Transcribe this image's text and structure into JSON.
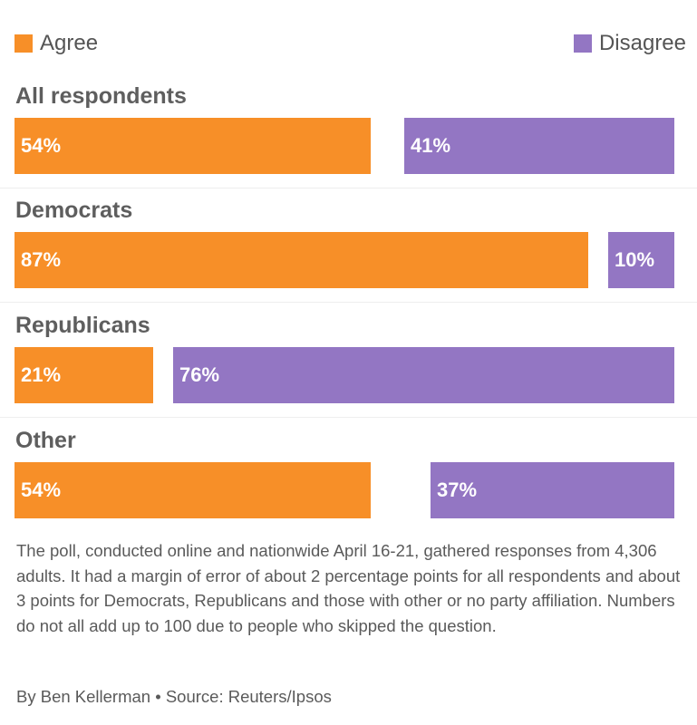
{
  "legend": {
    "agree": {
      "label": "Agree",
      "color": "#f78f28"
    },
    "disagree": {
      "label": "Disagree",
      "color": "#9376c3"
    }
  },
  "chart_data": {
    "type": "bar",
    "orientation": "horizontal",
    "layout": "diverging-from-ends",
    "categories": [
      "All respondents",
      "Democrats",
      "Republicans",
      "Other"
    ],
    "series": [
      {
        "name": "Agree",
        "values": [
          54,
          87,
          21,
          54
        ],
        "labels": [
          "54%",
          "87%",
          "21%",
          "54%"
        ],
        "color": "#f78f28"
      },
      {
        "name": "Disagree",
        "values": [
          41,
          10,
          76,
          37
        ],
        "labels": [
          "41%",
          "10%",
          "76%",
          "37%"
        ],
        "color": "#9376c3"
      }
    ],
    "xlim": [
      0,
      100
    ],
    "unit": "%",
    "legend": "top",
    "grid": false,
    "title": "",
    "xlabel": "",
    "ylabel": ""
  },
  "note": "The poll, conducted online and nationwide April 16-21, gathered responses from 4,306 adults. It had a margin of error of about 2 percentage points for all respondents and about 3 points for Democrats, Republicans and those with other or no party affiliation. Numbers do not all add up to 100 due to people who skipped the question.",
  "credit": "By Ben Kellerman • Source: Reuters/Ipsos"
}
